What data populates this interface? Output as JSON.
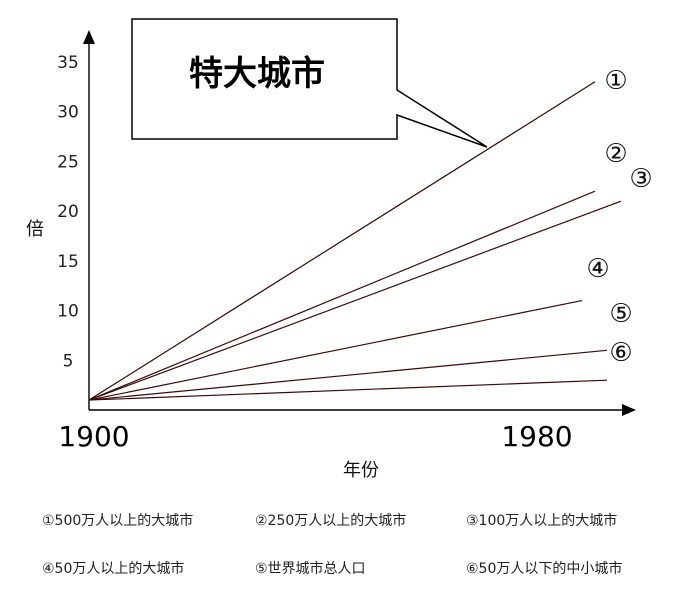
{
  "chart_data": {
    "type": "line",
    "title": "特大城市",
    "xlabel": "年份",
    "ylabel": "倍",
    "x": [
      "1900",
      "1980"
    ],
    "xticks": [
      "1900",
      "1980"
    ],
    "yticks": [
      "5",
      "10",
      "15",
      "20",
      "25",
      "30",
      "35"
    ],
    "ylim": [
      0,
      37
    ],
    "grid": false,
    "series": [
      {
        "name": "①",
        "values": [
          1,
          33
        ]
      },
      {
        "name": "②",
        "values": [
          1,
          22
        ]
      },
      {
        "name": "③",
        "values": [
          1,
          21
        ]
      },
      {
        "name": "④",
        "values": [
          1,
          11
        ]
      },
      {
        "name": "⑤",
        "values": [
          1,
          6
        ]
      },
      {
        "name": "⑥",
        "values": [
          1,
          3
        ]
      }
    ],
    "legend": [
      "①500万人以上的大城市",
      "②250万人以上的大城市",
      "③100万人以上的大城市",
      "④50万人以上的大城市",
      "⑤世界城市总人口",
      "⑥50万人以下的中小城市"
    ],
    "colors": {
      "line": "#3a0a0a",
      "axis": "#000000"
    }
  }
}
